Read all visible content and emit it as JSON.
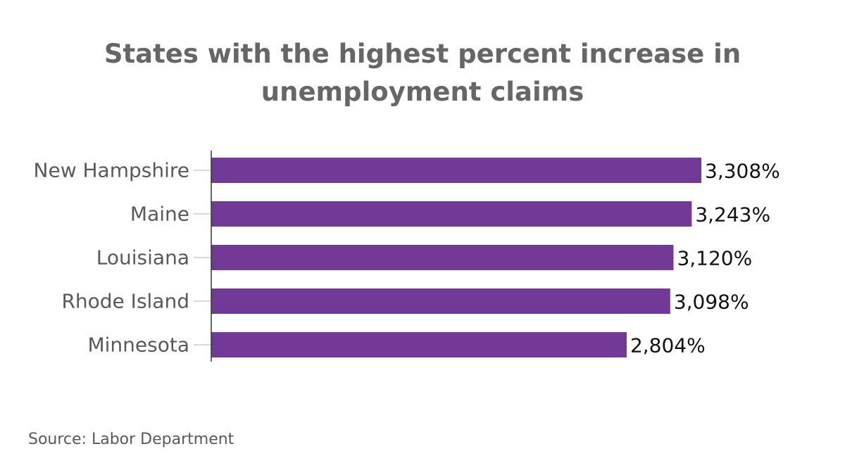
{
  "title": {
    "line1": "States with the highest percent increase in",
    "line2": "unemployment claims"
  },
  "source": "Source: Labor Department",
  "colors": {
    "bar": "#723a96",
    "axis": "#333333",
    "tick": "#cccccc"
  },
  "chart_data": {
    "type": "bar",
    "orientation": "horizontal",
    "categories": [
      "New Hampshire",
      "Maine",
      "Louisiana",
      "Rhode Island",
      "Minnesota"
    ],
    "values": [
      3308,
      3243,
      3120,
      3098,
      2804
    ],
    "value_labels": [
      "3,308%",
      "3,243%",
      "3,120%",
      "3,098%",
      "2,804%"
    ],
    "unit": "%",
    "title": "States with the highest percent increase in unemployment claims",
    "xlim": [
      0,
      3308
    ],
    "grid": false,
    "legend": "none"
  }
}
